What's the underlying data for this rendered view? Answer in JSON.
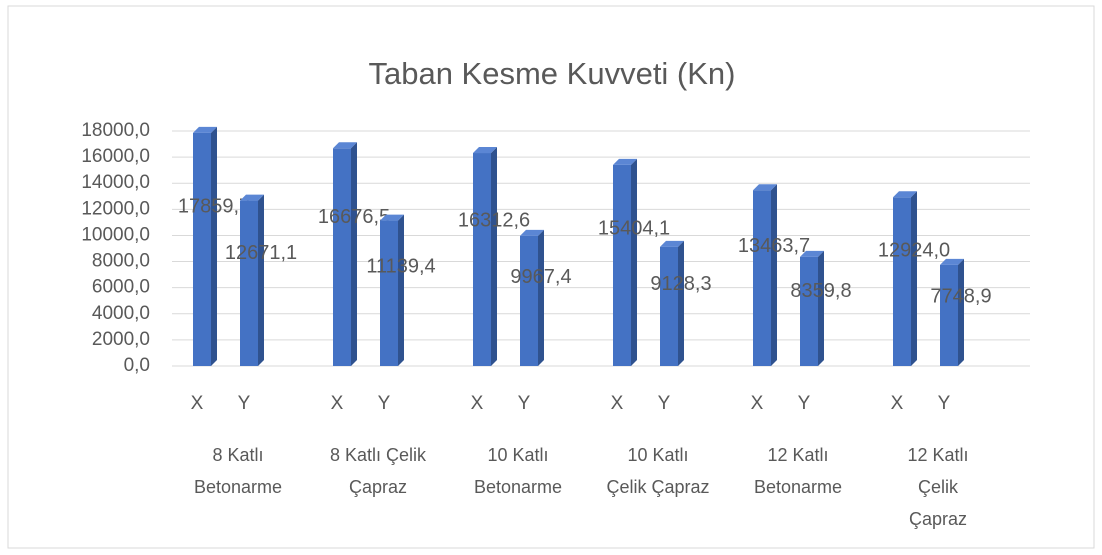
{
  "chart_data": {
    "type": "bar3d",
    "title": "Taban Kesme Kuvveti (Kn)",
    "categories": [
      "X",
      "Y",
      "X",
      "Y",
      "X",
      "Y",
      "X",
      "Y",
      "X",
      "Y",
      "X",
      "Y"
    ],
    "groups": [
      [
        "8 Katlı",
        "Betonarme"
      ],
      [
        "8 Katlı  Çelik",
        "Çapraz"
      ],
      [
        "10 Katlı",
        "Betonarme"
      ],
      [
        "10 Katlı",
        "Çelik Çapraz"
      ],
      [
        "12 Katlı",
        "Betonarme"
      ],
      [
        "12 Katlı",
        "Çelik",
        "Çapraz"
      ]
    ],
    "values": [
      17859.7,
      12671.1,
      16676.5,
      11139.4,
      16312.6,
      9967.4,
      15404.1,
      9128.3,
      13463.7,
      8359.8,
      12924.0,
      7748.9
    ],
    "value_labels": [
      "17859,7",
      "12671,1",
      "16676,5",
      "11139,4",
      "16312,6",
      "9967,4",
      "15404,1",
      "9128,3",
      "13463,7",
      "8359,8",
      "12924,0",
      "7748,9"
    ],
    "color": "#4472c4",
    "ylim": [
      0,
      18000
    ],
    "yticks": [
      {
        "value": 0,
        "label": "0,0"
      },
      {
        "value": 2000,
        "label": "2000,0"
      },
      {
        "value": 4000,
        "label": "4000,0"
      },
      {
        "value": 6000,
        "label": "6000,0"
      },
      {
        "value": 8000,
        "label": "8000,0"
      },
      {
        "value": 10000,
        "label": "10000,0"
      },
      {
        "value": 12000,
        "label": "12000,0"
      },
      {
        "value": 14000,
        "label": "14000,0"
      },
      {
        "value": 16000,
        "label": "16000,0"
      },
      {
        "value": 18000,
        "label": "18000,0"
      }
    ],
    "grid": true
  }
}
